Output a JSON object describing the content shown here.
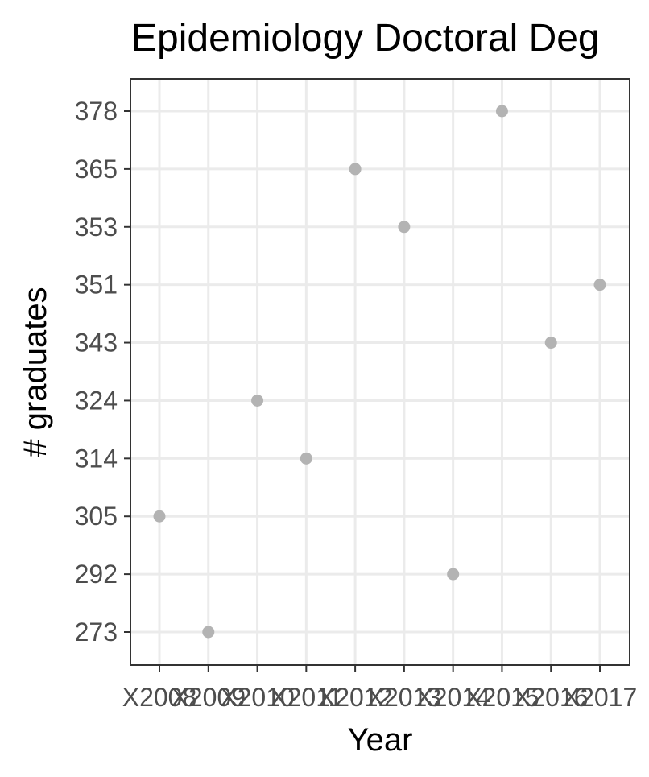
{
  "chart_data": {
    "type": "scatter",
    "title": "Epidemiology Doctoral Deg",
    "xlabel": "Year",
    "ylabel": "# graduates",
    "categories": [
      "X2008",
      "X2009",
      "X2010",
      "X2011",
      "X2012",
      "X2013",
      "X2014",
      "X2015",
      "X2016",
      "X2017"
    ],
    "y_ticks": [
      "273",
      "292",
      "305",
      "314",
      "324",
      "343",
      "351",
      "353",
      "365",
      "378"
    ],
    "values": [
      "305",
      "273",
      "324",
      "314",
      "365",
      "353",
      "292",
      "378",
      "343",
      "351"
    ],
    "grid": true,
    "legend": "none",
    "point_color": "#b3b3b3"
  }
}
